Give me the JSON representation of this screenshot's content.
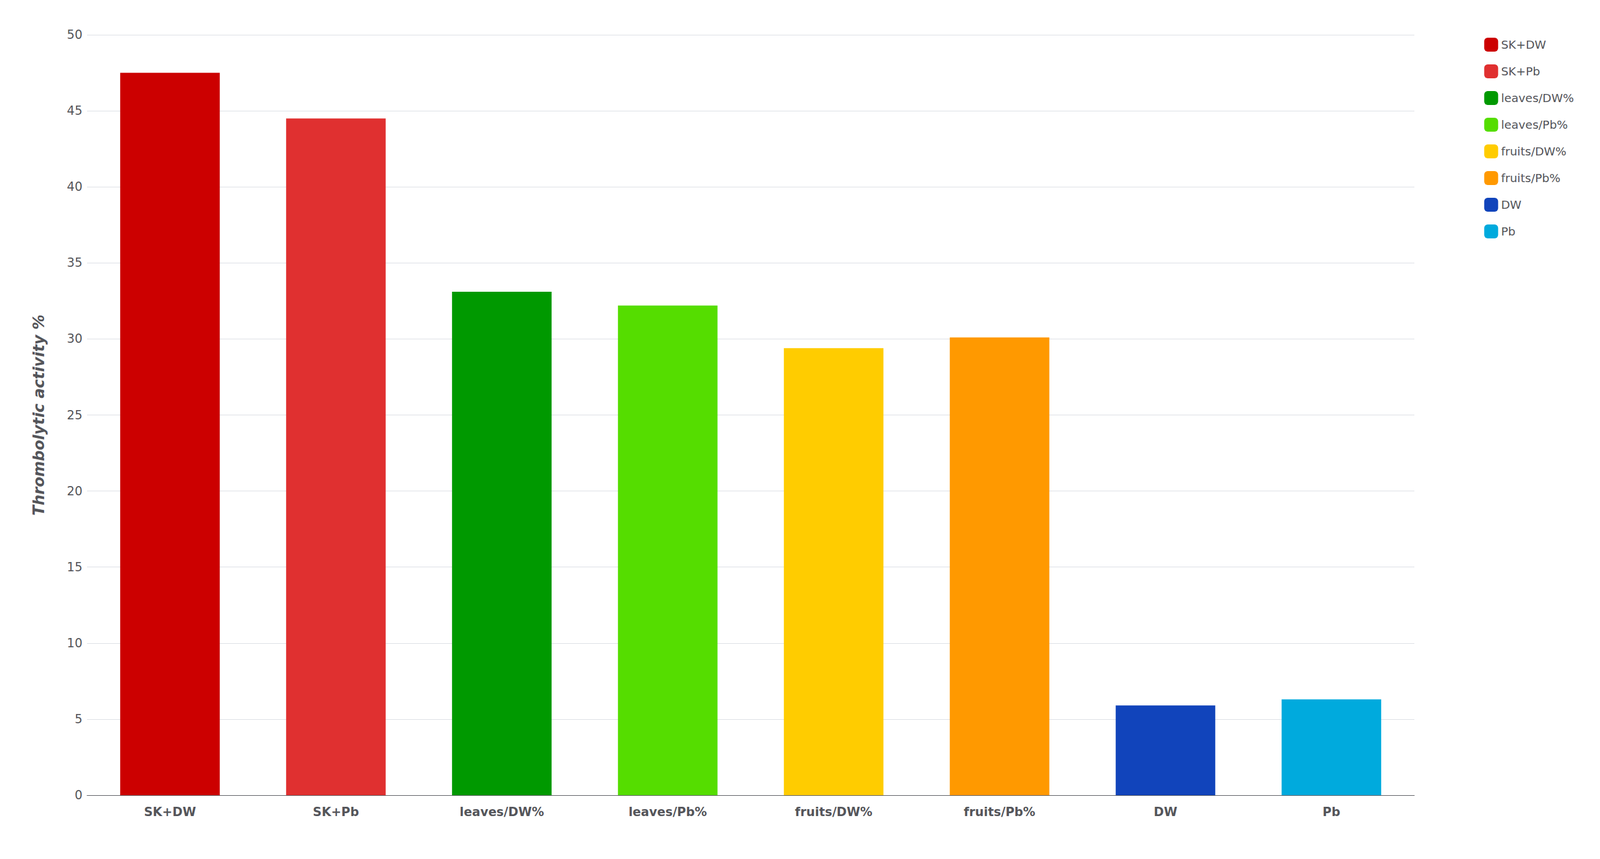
{
  "chart_data": {
    "type": "bar",
    "categories": [
      "SK+DW",
      "SK+Pb",
      "leaves/DW%",
      "leaves/Pb%",
      "fruits/DW%",
      "fruits/Pb%",
      "DW",
      "Pb"
    ],
    "values": [
      47.5,
      44.5,
      33.1,
      32.2,
      29.4,
      30.1,
      5.9,
      6.3
    ],
    "colors": [
      "#cc0000",
      "#e03030",
      "#009900",
      "#55dd00",
      "#ffcc00",
      "#ff9900",
      "#1144bb",
      "#00aadd"
    ],
    "ylabel": "Thrombolytic activity %",
    "ylim": [
      0,
      50
    ],
    "yticks": [
      0,
      5,
      10,
      15,
      20,
      25,
      30,
      35,
      40,
      45,
      50
    ],
    "grid": true,
    "legend": "right"
  }
}
